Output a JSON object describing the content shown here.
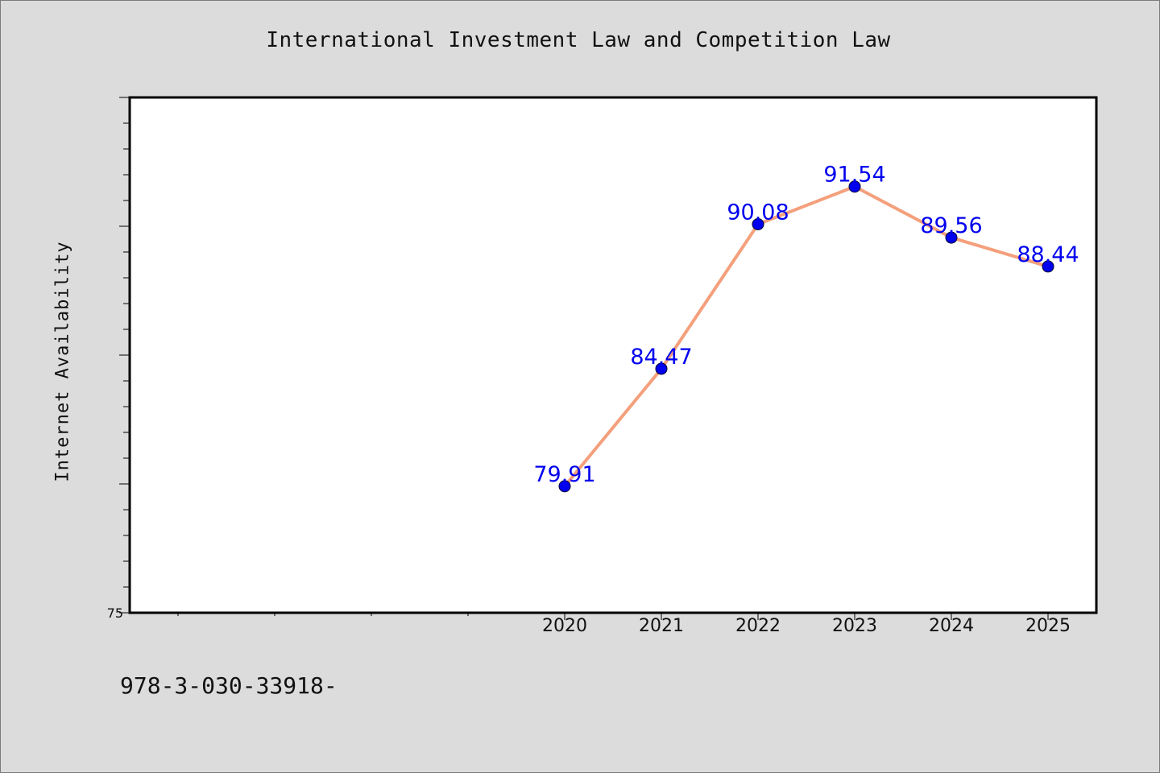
{
  "chart_data": {
    "type": "line",
    "title": "International Investment Law and Competition Law",
    "ylabel": "Internet Availability",
    "xlabel": "",
    "categories": [
      "2020",
      "2021",
      "2022",
      "2023",
      "2024",
      "2025"
    ],
    "series": [
      {
        "values": [
          79.91,
          84.47,
          90.08,
          91.54,
          89.56,
          88.44
        ],
        "line_color": "#f4a07c",
        "marker_color": "#0000ee",
        "label_color": "#0000ee"
      }
    ],
    "data_labels": [
      "79.91",
      "84.47",
      "90.08",
      "91.54",
      "89.56",
      "88.44"
    ],
    "ylim": [
      75,
      95
    ],
    "yticks_labeled": [
      "75"
    ],
    "grid": false,
    "legend": "none"
  },
  "footer": {
    "text": "978-3-030-33918-"
  },
  "colors": {
    "background": "#dcdcdc",
    "plot_background": "#ffffff",
    "axis": "#000000"
  }
}
